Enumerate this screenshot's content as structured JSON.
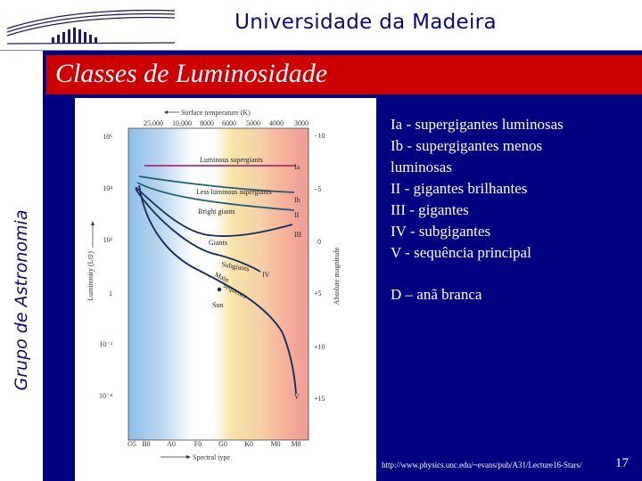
{
  "header": {
    "university": "Universidade da Madeira"
  },
  "sidebar": {
    "group_label": "Grupo de Astronomia"
  },
  "slide": {
    "title": "Classes de Luminosidade"
  },
  "diagram": {
    "top_axis_label": "Surface temperature (K)",
    "top_ticks": [
      "25,000",
      "10,000",
      "8000",
      "6000",
      "5000",
      "4000",
      "3000"
    ],
    "left_ticks": [
      "10⁶",
      "10⁴",
      "10²",
      "1",
      "10⁻²",
      "10⁻⁴"
    ],
    "left_axis_label": "Luminosity (L⊙)",
    "right_ticks": [
      "−10",
      "−5",
      "0",
      "+5",
      "+10",
      "+15"
    ],
    "right_axis_label": "Absolute magnitude",
    "bottom_ticks": [
      "O5",
      "B0",
      "A0",
      "F0",
      "G0",
      "K0",
      "M0",
      "M8"
    ],
    "bottom_axis_label": "Spectral type",
    "curve_labels": {
      "lum_supergiants": "Luminous supergiants",
      "less_lum_supergiants": "Less luminous supergiants",
      "bright_giants": "Bright giants",
      "giants": "Giants",
      "subgiants": "Subgiants",
      "main_seq_1": "Main",
      "main_seq_2": "sequence",
      "sun": "Sun"
    },
    "class_labels": {
      "ia": "Ia",
      "ib": "Ib",
      "ii": "II",
      "iii": "III",
      "iv": "IV",
      "v": "V"
    },
    "colors": {
      "band_blue": "#a9cdec",
      "band_yellow": "#f8e2a8",
      "band_orange": "#f6c29a",
      "band_red": "#f1a39a",
      "curve_magenta": "#b4287a",
      "curve_teal": "#1e5e70",
      "curve_navy": "#17305a"
    }
  },
  "info": {
    "lines": [
      " Ia - supergigantes luminosas",
      "Ib - supergigantes menos",
      "luminosas",
      "II - gigantes brilhantes",
      "III - gigantes",
      "IV - subgigantes",
      "V - sequência principal"
    ],
    "white_dwarf": "D – anã branca"
  },
  "footer": {
    "url": "http://www.physics.unc.edu/~evans/pub/A31/Lecture16-Stars/",
    "page": "17"
  }
}
